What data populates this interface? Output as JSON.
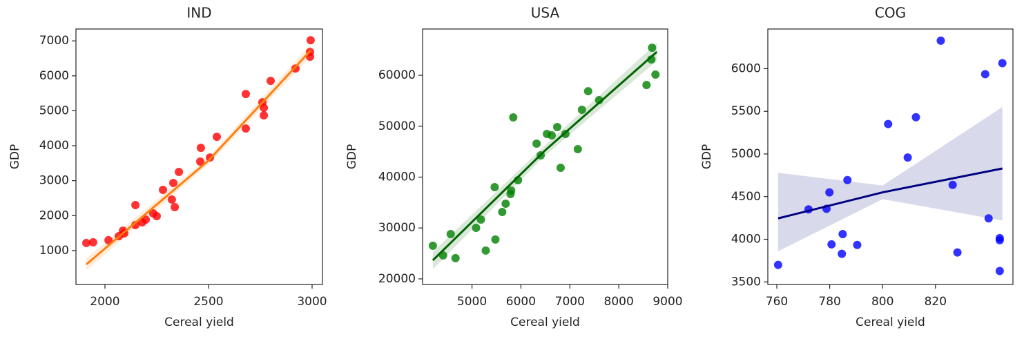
{
  "chart_data": [
    {
      "type": "scatter",
      "title": "IND",
      "x_label": "Cereal yield",
      "y_label": "GDP",
      "xlim": [
        1860,
        3050
      ],
      "ylim": [
        30,
        7340
      ],
      "xticks": [
        2000,
        2500,
        3000
      ],
      "yticks": [
        1000,
        2000,
        3000,
        4000,
        5000,
        6000,
        7000
      ],
      "color": "#ff0000",
      "x": [
        1910,
        1943,
        2017,
        2067,
        2087,
        2093,
        2147,
        2147,
        2180,
        2197,
        2233,
        2250,
        2280,
        2323,
        2330,
        2337,
        2357,
        2463,
        2460,
        2507,
        2540,
        2680,
        2680,
        2760,
        2767,
        2767,
        2800,
        2920,
        2990,
        2993,
        2990
      ],
      "y": [
        1217,
        1237,
        1296,
        1414,
        1572,
        1493,
        2303,
        1730,
        1809,
        1888,
        2066,
        1987,
        2737,
        2460,
        2934,
        2243,
        3250,
        3940,
        3546,
        3664,
        4256,
        5480,
        4493,
        5243,
        5085,
        4868,
        5855,
        6210,
        6546,
        7020,
        6684
      ],
      "fit": {
        "color": "#ff7f0e",
        "x": [
          1910,
          2500,
          2993
        ],
        "y": [
          605,
          3575,
          6725
        ],
        "lower": [
          430,
          3470,
          6550
        ],
        "upper": [
          780,
          3680,
          6900
        ]
      }
    },
    {
      "type": "scatter",
      "title": "USA",
      "x_label": "Cereal yield",
      "y_label": "GDP",
      "xlim": [
        3990,
        9000
      ],
      "ylim": [
        18900,
        69100
      ],
      "xticks": [
        5000,
        6000,
        7000,
        8000,
        9000
      ],
      "yticks": [
        20000,
        30000,
        40000,
        50000,
        60000
      ],
      "color": "#008000",
      "x": [
        4200,
        4410,
        4565,
        4663,
        5084,
        5183,
        5281,
        5463,
        5478,
        5618,
        5688,
        5787,
        5801,
        5843,
        5941,
        6320,
        6404,
        6531,
        6629,
        6742,
        6812,
        6910,
        7163,
        7247,
        7374,
        7598,
        8567,
        8666,
        8680,
        8750
      ],
      "y": [
        26510,
        24610,
        28810,
        24070,
        30030,
        31660,
        25560,
        38030,
        27730,
        33150,
        34780,
        36680,
        37360,
        51730,
        39390,
        46580,
        44270,
        48470,
        48200,
        49830,
        41830,
        48470,
        45490,
        53220,
        56880,
        55120,
        58100,
        63120,
        65420,
        60140
      ],
      "fit": {
        "color": "#006400",
        "x": [
          4200,
          6500,
          8778
        ],
        "y": [
          23660,
          45300,
          64610
        ],
        "lower": [
          21900,
          44300,
          62800
        ],
        "upper": [
          25300,
          46300,
          66400
        ]
      }
    },
    {
      "type": "scatter",
      "title": "COG",
      "x_label": "Cereal yield",
      "y_label": "GDP",
      "xlim": [
        756.6,
        849.3
      ],
      "ylim": [
        3470,
        6465
      ],
      "xticks": [
        760,
        780,
        800,
        820
      ],
      "yticks": [
        3500,
        4000,
        4500,
        5000,
        5500,
        6000
      ],
      "color": "#0000ff",
      "x": [
        760.5,
        772.0,
        778.8,
        779.9,
        780.7,
        784.9,
        784.6,
        786.7,
        790.4,
        802.1,
        809.5,
        812.6,
        822.0,
        826.5,
        828.3,
        838.8,
        840.1,
        844.3,
        844.3,
        844.3,
        845.3
      ],
      "y": [
        3700,
        4350,
        4357,
        4550,
        3940,
        4061,
        3829,
        4694,
        3933,
        5351,
        4958,
        5431,
        6328,
        4638,
        3845,
        5936,
        4245,
        4013,
        3989,
        3628,
        6064
      ],
      "fit": {
        "color": "#000080",
        "x": [
          760.5,
          800,
          845.3
        ],
        "y": [
          4245,
          4550,
          4830
        ],
        "lower": [
          3860,
          4470,
          4220
        ],
        "upper": [
          4780,
          4630,
          5550
        ]
      }
    }
  ]
}
